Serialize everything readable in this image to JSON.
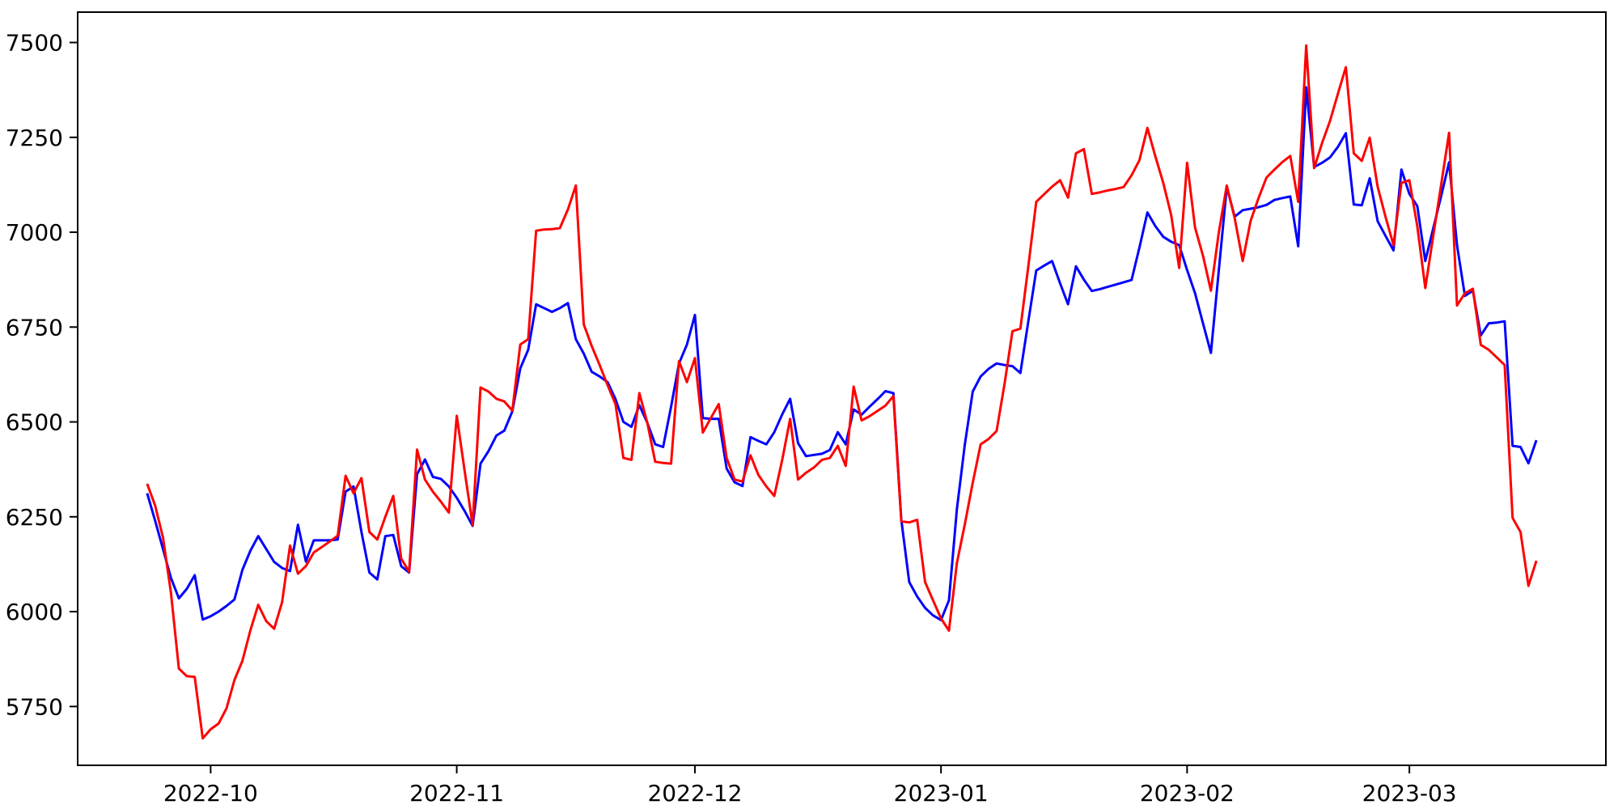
{
  "figure": {
    "background_color": "#ffffff",
    "plot_border_color": "#000000",
    "tick_color": "#000000",
    "tick_label_color": "#000000"
  },
  "chart_data": {
    "type": "line",
    "title": "",
    "xlabel": "",
    "ylabel": "",
    "grid": false,
    "legend_visible": false,
    "start_date": "2022-09-23",
    "frequency": "daily",
    "n_points": 176,
    "ylim": [
      5595,
      7580
    ],
    "x_margin_days": 8.75,
    "y_ticks": [
      5750,
      6000,
      6250,
      6500,
      6750,
      7000,
      7250,
      7500
    ],
    "x_ticks": [
      {
        "label": "2022-10",
        "day_index": 8
      },
      {
        "label": "2022-11",
        "day_index": 39
      },
      {
        "label": "2022-12",
        "day_index": 69
      },
      {
        "label": "2023-01",
        "day_index": 100
      },
      {
        "label": "2023-02",
        "day_index": 131
      },
      {
        "label": "2023-03",
        "day_index": 159
      }
    ],
    "series": [
      {
        "name": "blue-series",
        "color": "#0000ff",
        "line_width": 3,
        "values": [
          6312,
          6240,
          6165,
          6089,
          6035,
          6060,
          6096,
          5979,
          5988,
          6000,
          6015,
          6032,
          6110,
          6160,
          6199,
          6165,
          6131,
          6115,
          6107,
          6229,
          6132,
          6188,
          6188,
          6188,
          6190,
          6316,
          6330,
          6210,
          6103,
          6085,
          6199,
          6202,
          6120,
          6103,
          6362,
          6401,
          6355,
          6350,
          6330,
          6300,
          6265,
          6226,
          6390,
          6423,
          6464,
          6477,
          6528,
          6641,
          6690,
          6810,
          6800,
          6790,
          6800,
          6813,
          6718,
          6680,
          6632,
          6620,
          6605,
          6560,
          6500,
          6487,
          6544,
          6498,
          6441,
          6434,
          6540,
          6654,
          6704,
          6782,
          6510,
          6508,
          6508,
          6377,
          6341,
          6331,
          6460,
          6450,
          6441,
          6473,
          6520,
          6561,
          6444,
          6410,
          6413,
          6416,
          6426,
          6473,
          6441,
          6533,
          6519,
          6540,
          6560,
          6581,
          6576,
          6242,
          6078,
          6040,
          6010,
          5990,
          5978,
          6030,
          6270,
          6440,
          6580,
          6620,
          6640,
          6654,
          6650,
          6647,
          6629,
          6765,
          6899,
          6912,
          6924,
          6865,
          6810,
          6910,
          6875,
          6845,
          6850,
          6856,
          6862,
          6868,
          6874,
          6960,
          7052,
          7016,
          6988,
          6975,
          6966,
          6900,
          6839,
          6760,
          6682,
          6900,
          7119,
          7041,
          7058,
          7062,
          7066,
          7072,
          7085,
          7090,
          7094,
          6963,
          7382,
          7172,
          7183,
          7197,
          7225,
          7261,
          7073,
          7071,
          7142,
          7029,
          6990,
          6952,
          7165,
          7101,
          7069,
          6924,
          7010,
          7095,
          7184,
          6966,
          6832,
          6846,
          6728,
          6760,
          6762,
          6765,
          6437,
          6434,
          6391,
          6452
        ]
      },
      {
        "name": "red-series",
        "color": "#ff0000",
        "line_width": 3,
        "values": [
          6337,
          6280,
          6195,
          6050,
          5850,
          5830,
          5828,
          5666,
          5690,
          5705,
          5745,
          5820,
          5870,
          5950,
          6018,
          5975,
          5955,
          6025,
          6174,
          6100,
          6120,
          6156,
          6170,
          6185,
          6200,
          6358,
          6312,
          6352,
          6210,
          6190,
          6250,
          6305,
          6140,
          6105,
          6427,
          6348,
          6316,
          6290,
          6261,
          6516,
          6370,
          6228,
          6591,
          6580,
          6561,
          6554,
          6530,
          6704,
          6718,
          7004,
          7007,
          7008,
          7011,
          7060,
          7123,
          6757,
          6700,
          6650,
          6597,
          6547,
          6405,
          6400,
          6576,
          6498,
          6395,
          6392,
          6390,
          6660,
          6605,
          6668,
          6472,
          6510,
          6547,
          6405,
          6348,
          6343,
          6412,
          6360,
          6330,
          6305,
          6400,
          6508,
          6348,
          6366,
          6380,
          6400,
          6405,
          6437,
          6384,
          6593,
          6504,
          6515,
          6529,
          6543,
          6568,
          6238,
          6235,
          6242,
          6078,
          6030,
          5982,
          5950,
          6128,
          6230,
          6340,
          6441,
          6455,
          6476,
          6600,
          6739,
          6746,
          6910,
          7080,
          7100,
          7120,
          7137,
          7091,
          7208,
          7219,
          7101,
          7105,
          7110,
          7114,
          7119,
          7150,
          7190,
          7275,
          7200,
          7130,
          7045,
          6906,
          7183,
          7012,
          6938,
          6846,
          7000,
          7123,
          7037,
          6924,
          7030,
          7090,
          7144,
          7165,
          7185,
          7201,
          7080,
          7492,
          7169,
          7235,
          7293,
          7365,
          7435,
          7208,
          7188,
          7249,
          7120,
          7040,
          6966,
          7130,
          7137,
          7016,
          6853,
          6990,
          7125,
          7262,
          6807,
          6839,
          6851,
          6703,
          6690,
          6670,
          6650,
          6247,
          6210,
          6068,
          6134
        ]
      }
    ]
  }
}
